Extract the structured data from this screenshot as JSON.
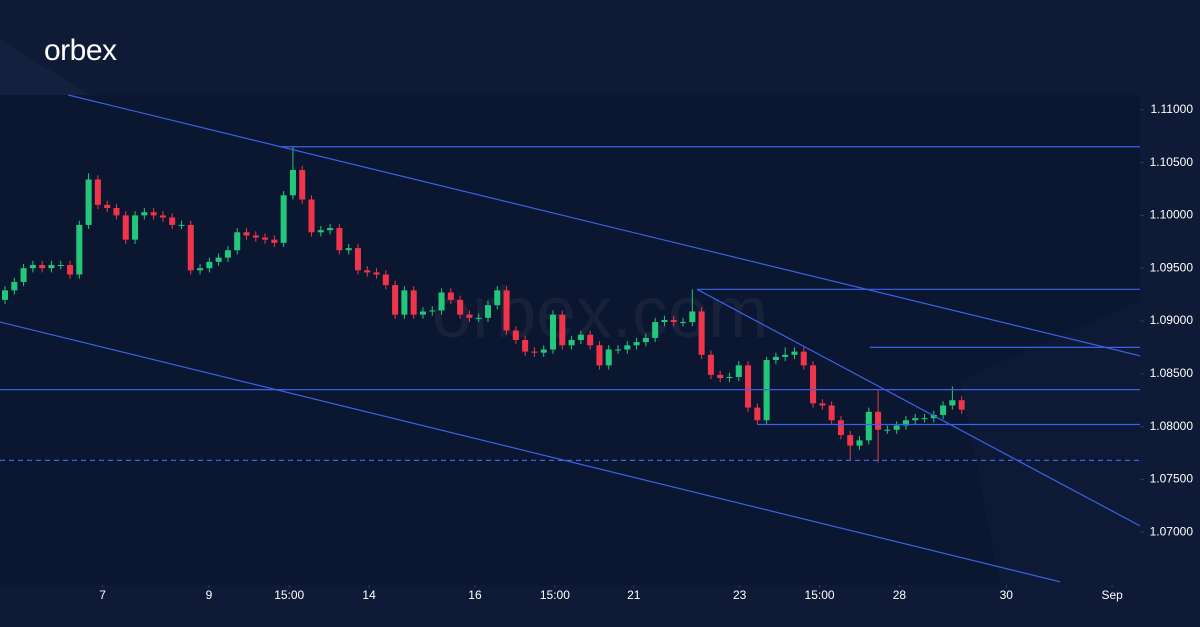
{
  "brand": "orbex",
  "chart_data": {
    "type": "candlestick",
    "watermark": "orbex.com",
    "xlim": [
      -0.54,
      122.2
    ],
    "xticks": [
      {
        "value": 10.5,
        "label": "7"
      },
      {
        "value": 21.96,
        "label": "9"
      },
      {
        "value": 30.6,
        "label": "15:00"
      },
      {
        "value": 39.2,
        "label": "14"
      },
      {
        "value": 50.6,
        "label": "16"
      },
      {
        "value": 59.2,
        "label": "15:00"
      },
      {
        "value": 67.7,
        "label": "21"
      },
      {
        "value": 79.1,
        "label": "23"
      },
      {
        "value": 87.7,
        "label": "15:00"
      },
      {
        "value": 96.3,
        "label": "28"
      },
      {
        "value": 107.8,
        "label": "30"
      },
      {
        "value": 119.2,
        "label": "Sep"
      }
    ],
    "ylim": [
      1.065,
      1.1114
    ],
    "yticks": [
      {
        "value": 1.07,
        "label": "1.07000"
      },
      {
        "value": 1.075,
        "label": "1.07500"
      },
      {
        "value": 1.08,
        "label": "1.08000"
      },
      {
        "value": 1.085,
        "label": "1.08500"
      },
      {
        "value": 1.09,
        "label": "1.09000"
      },
      {
        "value": 1.095,
        "label": "1.09500"
      },
      {
        "value": 1.1,
        "label": "1.10000"
      },
      {
        "value": 1.105,
        "label": "1.10500"
      },
      {
        "value": 1.11,
        "label": "1.11000"
      }
    ],
    "up_color": "#22c77a",
    "down_color": "#f0354a",
    "line_color": "#3b62e6",
    "open": [
      1.092,
      1.0929,
      1.0937,
      1.095,
      1.0953,
      1.095,
      1.0953,
      1.0953,
      1.0944,
      1.0991,
      1.1034,
      1.101,
      1.1007,
      1.1,
      1.0977,
      1.1,
      1.1003,
      1.1,
      1.0998,
      1.0991,
      1.0991,
      1.0948,
      1.095,
      1.0956,
      1.096,
      1.0967,
      1.0984,
      1.0981,
      1.0979,
      1.0977,
      1.0974,
      1.1019,
      1.1043,
      1.1015,
      1.0984,
      1.0986,
      1.0988,
      1.0967,
      1.0969,
      1.0948,
      1.0946,
      1.0944,
      1.0934,
      1.0906,
      1.0929,
      1.0906,
      1.0909,
      1.091,
      1.0927,
      1.092,
      1.0906,
      1.0903,
      1.0903,
      1.0915,
      1.0929,
      1.0891,
      1.0882,
      1.0871,
      1.087,
      1.0873,
      1.0906,
      1.0877,
      1.0882,
      1.0887,
      1.0877,
      1.0858,
      1.0873,
      1.0873,
      1.0877,
      1.088,
      1.0884,
      1.0899,
      1.0901,
      1.0899,
      1.0899,
      1.0909,
      1.0868,
      1.0849,
      1.0846,
      1.0847,
      1.0858,
      1.0818,
      1.0806,
      1.0863,
      1.0866,
      1.0868,
      1.0871,
      1.0858,
      1.0822,
      1.082,
      1.0806,
      1.0792,
      1.0782,
      1.0787,
      1.0814,
      1.0797,
      1.0797,
      1.0801,
      1.0806,
      1.0808,
      1.0808,
      1.0811,
      1.082,
      1.0825
    ],
    "high": [
      1.0933,
      1.0941,
      1.0954,
      1.0957,
      1.0957,
      1.0957,
      1.0957,
      1.0957,
      1.0995,
      1.104,
      1.1038,
      1.1014,
      1.1011,
      1.1004,
      1.1004,
      1.1007,
      1.1007,
      1.1004,
      1.1002,
      1.0995,
      1.0995,
      1.0954,
      1.096,
      1.0964,
      1.0971,
      1.0988,
      1.0988,
      1.0985,
      1.0983,
      1.0981,
      1.1023,
      1.1065,
      1.1047,
      1.1019,
      1.099,
      1.0992,
      1.0992,
      1.0973,
      1.0973,
      1.0952,
      1.095,
      1.0948,
      1.0938,
      1.0933,
      1.0933,
      1.0913,
      1.0914,
      1.0931,
      1.0931,
      1.0924,
      1.091,
      1.0907,
      1.0919,
      1.0933,
      1.0933,
      1.0895,
      1.0886,
      1.0875,
      1.0877,
      1.091,
      1.091,
      1.0886,
      1.0891,
      1.0891,
      1.0881,
      1.0877,
      1.0877,
      1.0881,
      1.0884,
      1.0888,
      1.0903,
      1.0905,
      1.0905,
      1.0903,
      1.093,
      1.0913,
      1.0872,
      1.0853,
      1.0851,
      1.0862,
      1.0862,
      1.0822,
      1.0866,
      1.087,
      1.0875,
      1.0875,
      1.0875,
      1.0862,
      1.0826,
      1.0824,
      1.081,
      1.0796,
      1.0791,
      1.0818,
      1.0835,
      1.0801,
      1.0805,
      1.081,
      1.0812,
      1.0812,
      1.0815,
      1.0824,
      1.0838,
      1.0829
    ],
    "low": [
      1.0916,
      1.0925,
      1.0933,
      1.0946,
      1.0946,
      1.0946,
      1.0949,
      1.094,
      1.094,
      1.0987,
      1.1006,
      1.1003,
      1.0996,
      1.0973,
      1.0973,
      1.0996,
      1.0996,
      1.0994,
      1.0987,
      1.0987,
      1.0944,
      1.0944,
      1.0946,
      1.0952,
      1.0956,
      1.0963,
      1.0977,
      1.0975,
      1.0973,
      1.097,
      1.097,
      1.1015,
      1.1011,
      1.098,
      1.098,
      1.0982,
      1.0963,
      1.0963,
      1.0944,
      1.0942,
      1.094,
      1.093,
      1.0902,
      1.0902,
      1.0902,
      1.0902,
      1.0905,
      1.0906,
      1.0916,
      1.0902,
      1.0899,
      1.0899,
      1.0899,
      1.0911,
      1.0887,
      1.0878,
      1.0867,
      1.0866,
      1.0866,
      1.0869,
      1.0873,
      1.0873,
      1.0878,
      1.0873,
      1.0854,
      1.0854,
      1.0869,
      1.0869,
      1.0873,
      1.0876,
      1.088,
      1.0895,
      1.0895,
      1.0895,
      1.0895,
      1.0864,
      1.0845,
      1.0842,
      1.0842,
      1.0843,
      1.0814,
      1.0802,
      1.0802,
      1.0859,
      1.0862,
      1.0864,
      1.0854,
      1.0818,
      1.0816,
      1.0802,
      1.0788,
      1.0768,
      1.0778,
      1.0783,
      1.0766,
      1.0793,
      1.0793,
      1.0797,
      1.0802,
      1.0804,
      1.0804,
      1.0807,
      1.0816,
      1.0812
    ],
    "close": [
      1.0929,
      1.0937,
      1.095,
      1.0953,
      1.095,
      1.0953,
      1.0953,
      1.0944,
      1.0991,
      1.1034,
      1.101,
      1.1007,
      1.1,
      1.0977,
      1.1,
      1.1003,
      1.1,
      1.0998,
      1.0991,
      1.0991,
      1.0948,
      1.095,
      1.0956,
      1.096,
      1.0967,
      1.0984,
      1.0981,
      1.0979,
      1.0977,
      1.0974,
      1.1019,
      1.1043,
      1.1015,
      1.0984,
      1.0986,
      1.0988,
      1.0967,
      1.0969,
      1.0948,
      1.0946,
      1.0944,
      1.0934,
      1.0906,
      1.0929,
      1.0906,
      1.0909,
      1.091,
      1.0927,
      1.092,
      1.0906,
      1.0903,
      1.0903,
      1.0915,
      1.0929,
      1.0891,
      1.0882,
      1.0871,
      1.087,
      1.0873,
      1.0906,
      1.0877,
      1.0882,
      1.0887,
      1.0877,
      1.0858,
      1.0873,
      1.0873,
      1.0877,
      1.088,
      1.0884,
      1.0899,
      1.0901,
      1.0899,
      1.0899,
      1.0909,
      1.0868,
      1.0849,
      1.0846,
      1.0847,
      1.0858,
      1.0818,
      1.0806,
      1.0863,
      1.0866,
      1.0868,
      1.0871,
      1.0858,
      1.0822,
      1.082,
      1.0806,
      1.0792,
      1.0782,
      1.0787,
      1.0814,
      1.0797,
      1.0797,
      1.0801,
      1.0806,
      1.0808,
      1.0808,
      1.0811,
      1.082,
      1.0825,
      1.0816
    ],
    "lines": [
      {
        "x": [
          6.8,
          122.2
        ],
        "y": [
          1.1114,
          1.0867
        ],
        "dashed": false
      },
      {
        "x": [
          -0.54,
          113.6
        ],
        "y": [
          1.0899,
          1.0653
        ],
        "dashed": false
      },
      {
        "x": [
          74.5,
          122.2
        ],
        "y": [
          1.093,
          1.0706
        ],
        "dashed": false
      },
      {
        "x": [
          29.6,
          122.2
        ],
        "y": [
          1.1065,
          1.1065
        ],
        "dashed": false
      },
      {
        "x": [
          74.5,
          122.2
        ],
        "y": [
          1.093,
          1.093
        ],
        "dashed": false
      },
      {
        "x": [
          93.1,
          122.2
        ],
        "y": [
          1.0875,
          1.0875
        ],
        "dashed": false
      },
      {
        "x": [
          -0.54,
          122.2
        ],
        "y": [
          1.0835,
          1.0835
        ],
        "dashed": false
      },
      {
        "x": [
          81,
          122.2
        ],
        "y": [
          1.0802,
          1.0802
        ],
        "dashed": false
      },
      {
        "x": [
          -0.54,
          122.2
        ],
        "y": [
          1.0768,
          1.0768
        ],
        "dashed": true
      }
    ]
  }
}
